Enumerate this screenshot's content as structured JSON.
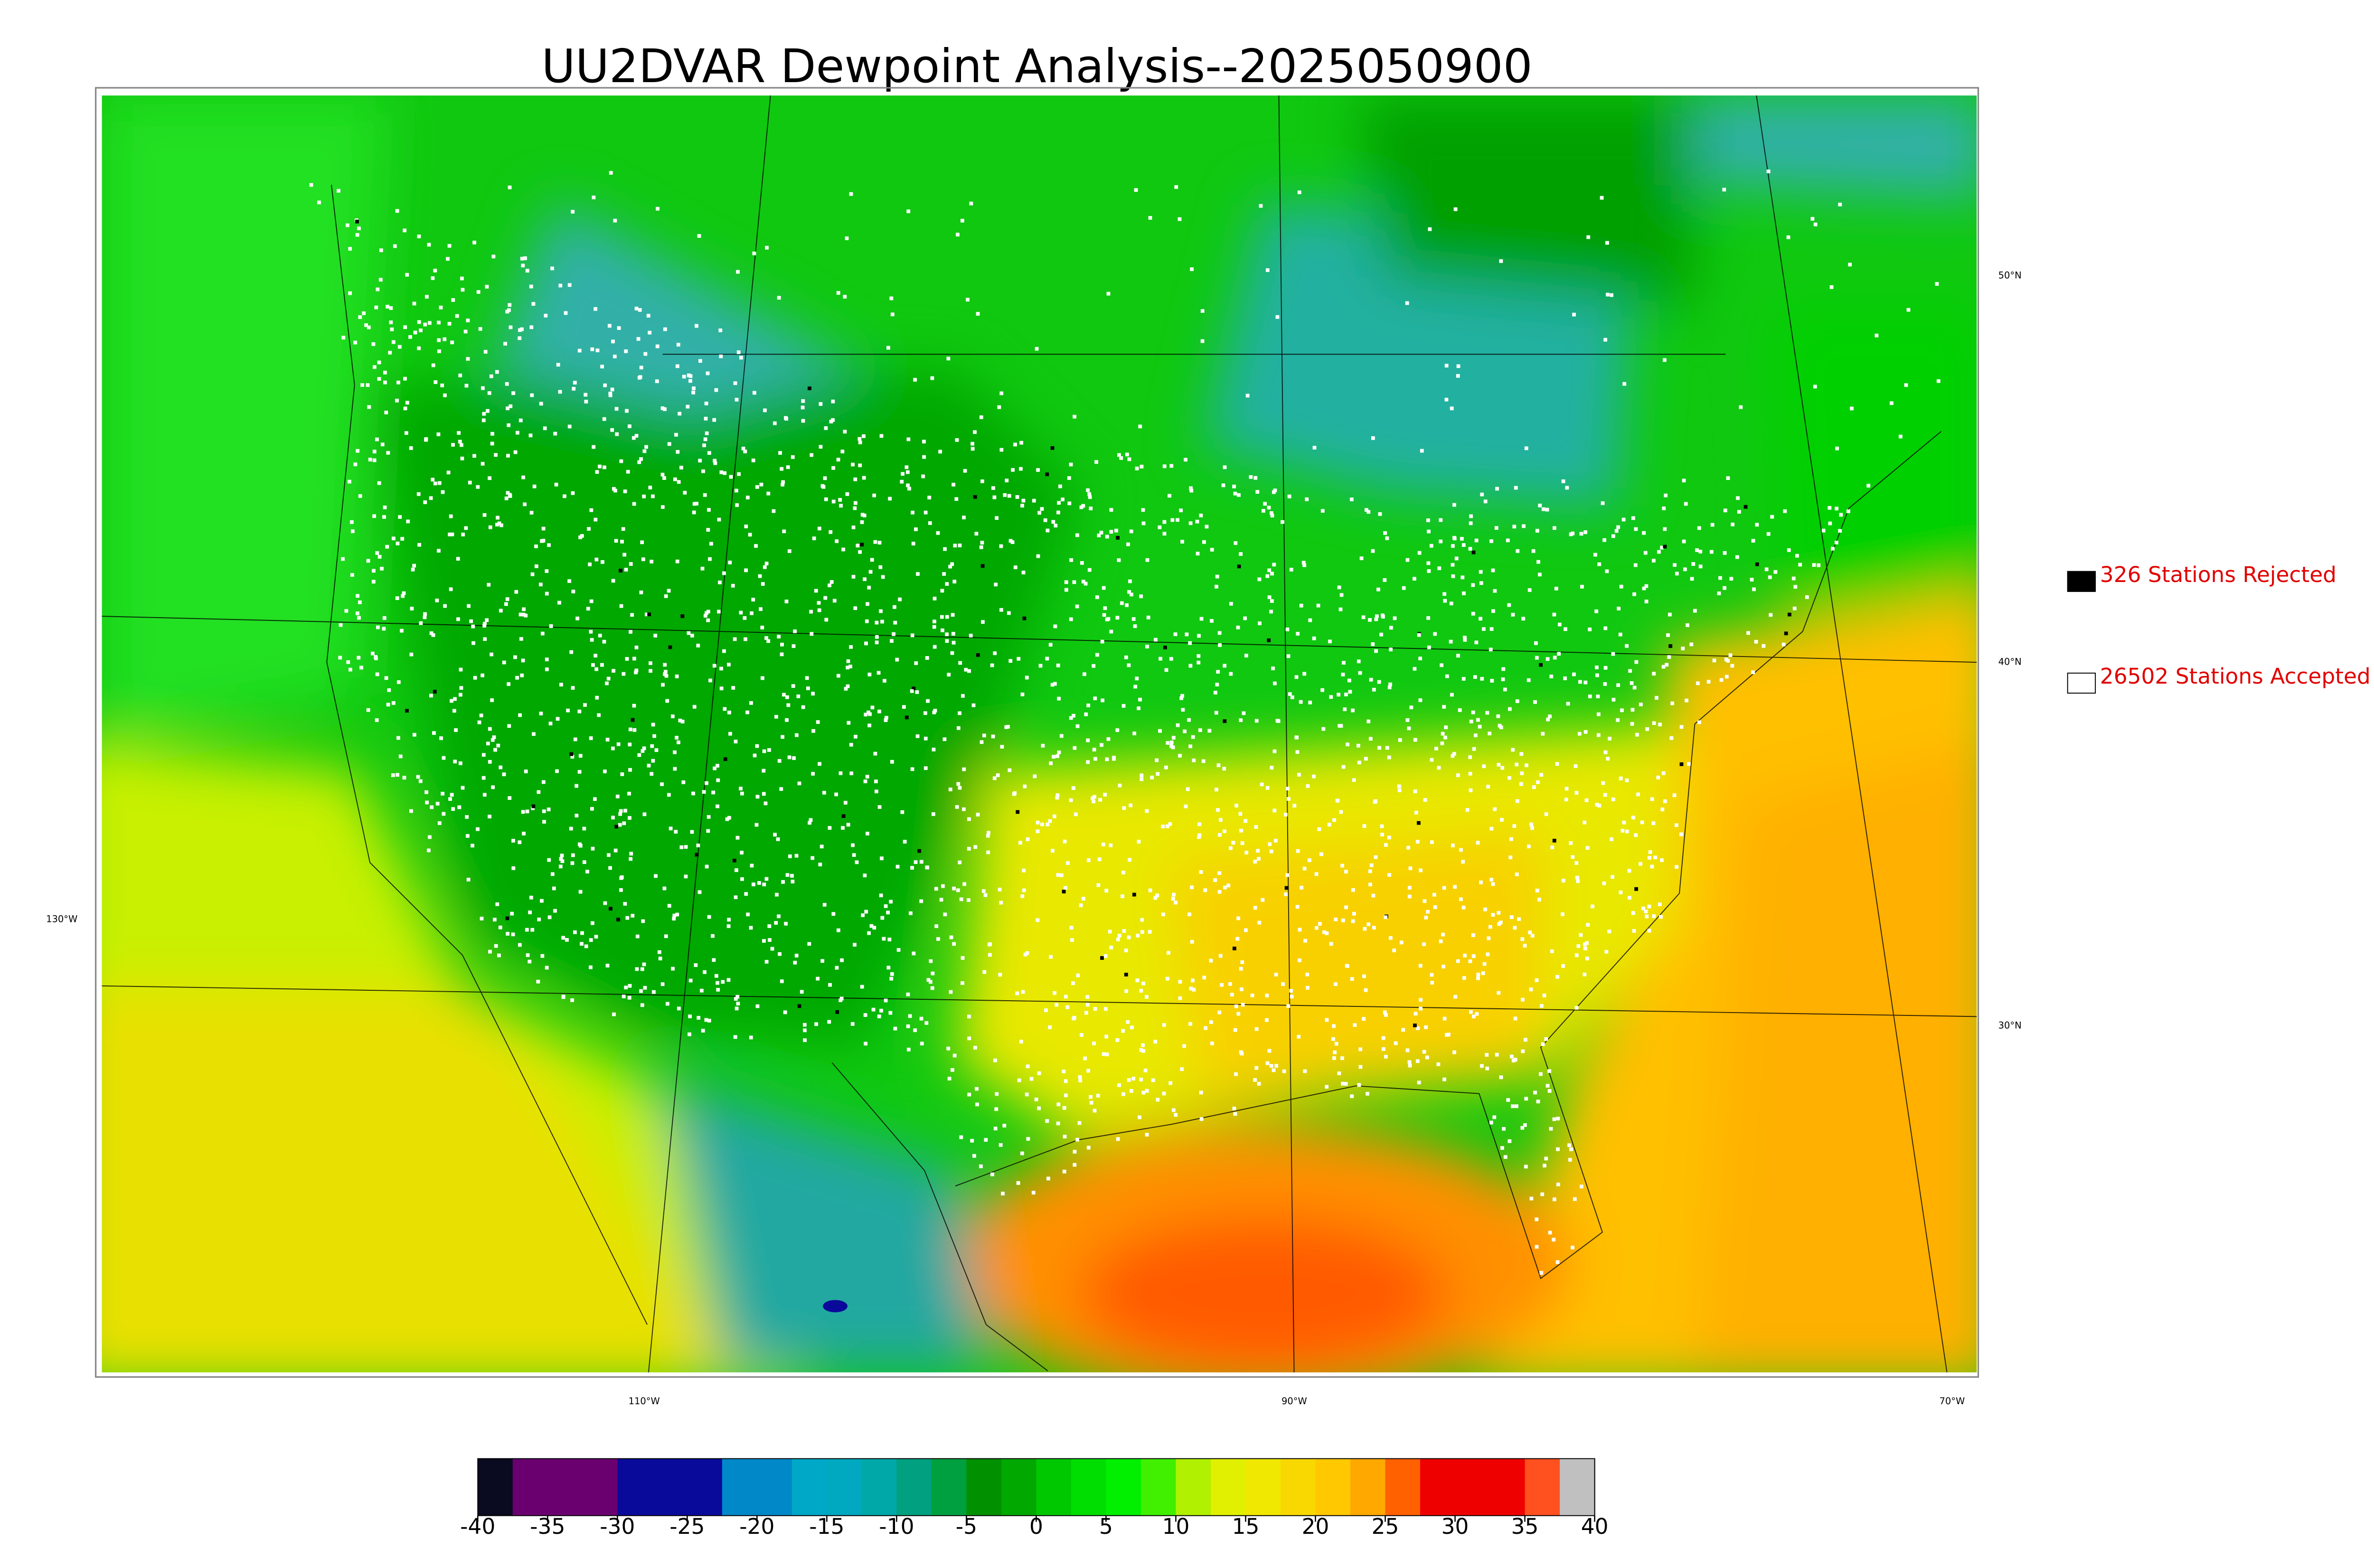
{
  "title": "UU2DVAR Dewpoint Analysis--2025050900",
  "legend": [
    {
      "label": "326 Stations Rejected",
      "color": "#000000"
    },
    {
      "label": "26502 Stations Accepted",
      "color": "#ffffff"
    }
  ],
  "map_labels": {
    "latitudes": [
      "50°N",
      "40°N",
      "30°N"
    ],
    "longitudes": [
      "130°W",
      "110°W",
      "90°W",
      "70°W"
    ]
  },
  "colorbar": {
    "range": [
      -40,
      40
    ],
    "ticks": [
      -40,
      -35,
      -30,
      -25,
      -20,
      -15,
      -10,
      -5,
      0,
      5,
      10,
      15,
      20,
      25,
      30,
      35,
      40
    ],
    "colors": [
      "#0a0a20",
      "#6a006f",
      "#6a006f",
      "#6a006f",
      "#0a0a9a",
      "#0a0a9a",
      "#0a0a9a",
      "#0088c8",
      "#0088c8",
      "#00a8c8",
      "#00a8c0",
      "#00a8a8",
      "#00a080",
      "#00a040",
      "#009000",
      "#00a800",
      "#00c800",
      "#00dd00",
      "#00f000",
      "#40f000",
      "#b0f000",
      "#e0f000",
      "#f0e800",
      "#f8d800",
      "#ffc800",
      "#ffa800",
      "#ff6000",
      "#ee0000",
      "#ee0000",
      "#ee0000",
      "#ff5020",
      "#c0c0c0"
    ]
  }
}
